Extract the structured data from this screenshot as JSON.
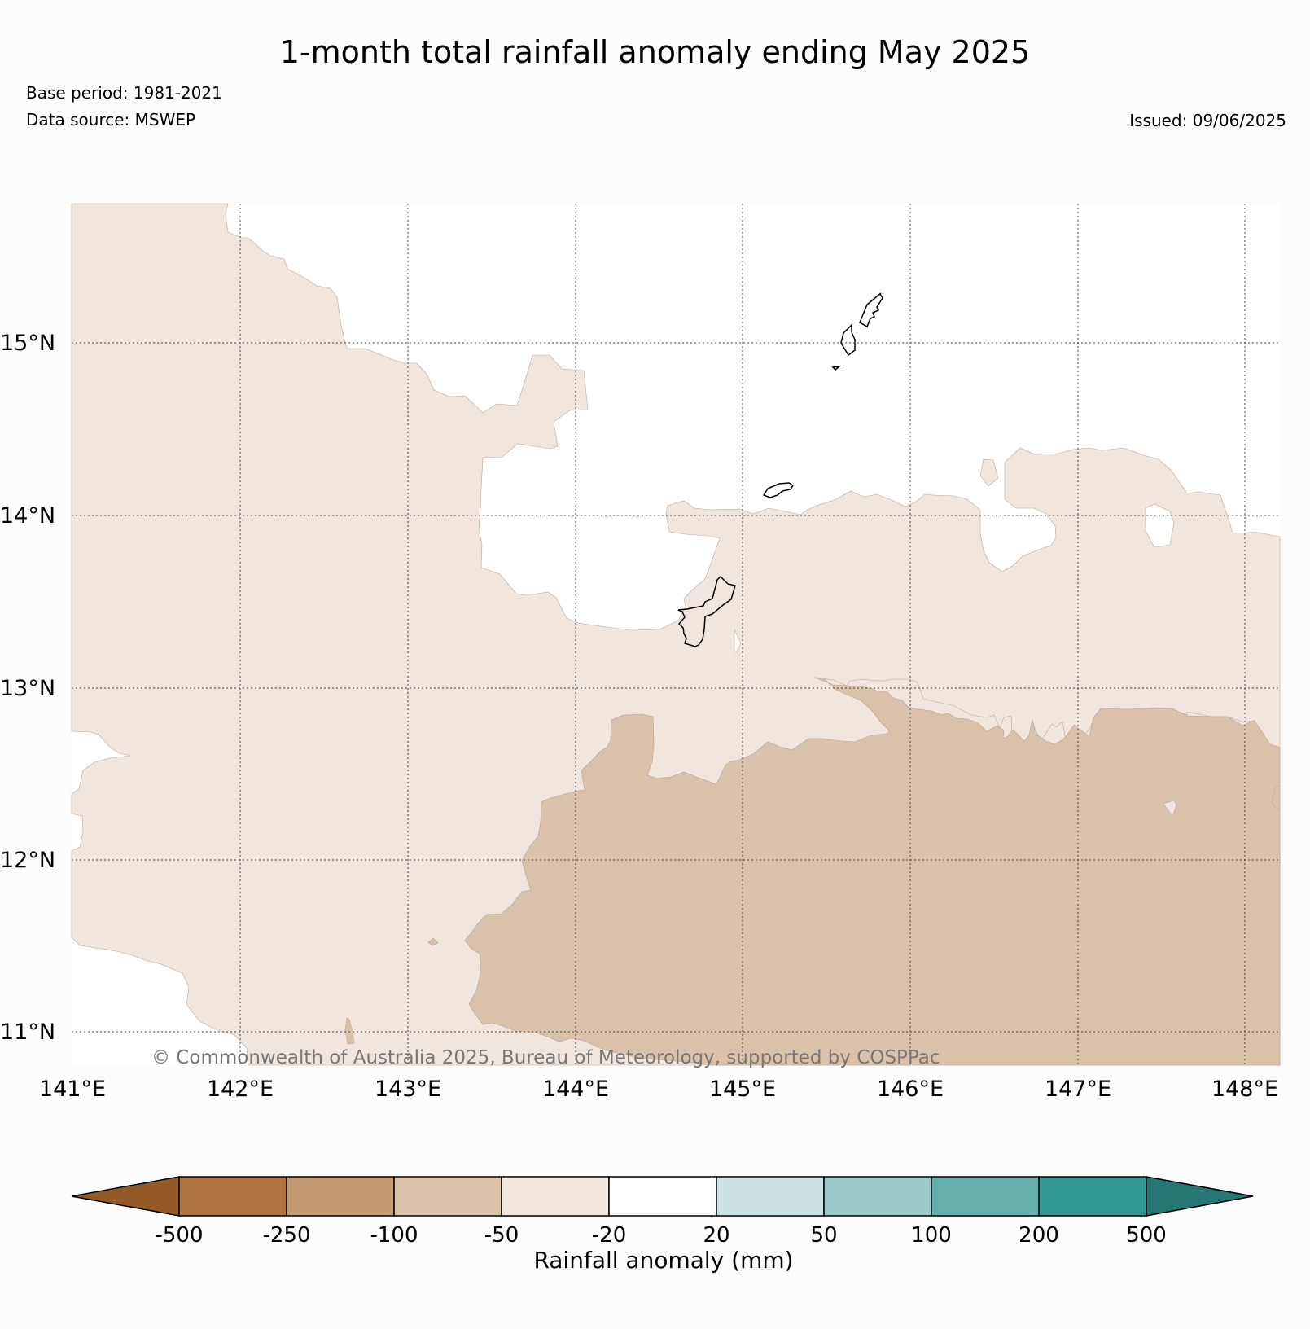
{
  "title": "1-month total rainfall anomaly ending May 2025",
  "base_period": "Base period: 1981-2021",
  "data_source": "Data source: MSWEP",
  "issued": "Issued: 09/06/2025",
  "copyright": "© Commonwealth of Australia 2025, Bureau of Meteorology, supported by COSPPac",
  "map": {
    "lon_range": [
      141.0,
      148.2
    ],
    "lat_range": [
      10.8,
      15.8
    ],
    "lon_ticks": [
      "141°E",
      "142°E",
      "143°E",
      "144°E",
      "145°E",
      "146°E",
      "147°E",
      "148°E"
    ],
    "lat_ticks": [
      "15°N",
      "14°N",
      "13°N",
      "12°N",
      "11°N"
    ],
    "gridlines": "dotted",
    "features": [
      "Guam",
      "Rota",
      "Saipan",
      "Tinian"
    ],
    "dominant_classes": [
      "-50 to -20 mm",
      "-100 to -50 mm",
      "-20 to 20 mm"
    ]
  },
  "colorbar": {
    "title": "Rainfall anomaly (mm)",
    "ticks": [
      "-500",
      "-250",
      "-100",
      "-50",
      "-20",
      "20",
      "50",
      "100",
      "200",
      "500"
    ],
    "colors": [
      "#935a28",
      "#ae753e",
      "#c49b74",
      "#dac1a9",
      "#f0e6dd",
      "#ffffff",
      "#cbe4e3",
      "#9ccac8",
      "#66b0ae",
      "#319793",
      "#267774"
    ]
  }
}
